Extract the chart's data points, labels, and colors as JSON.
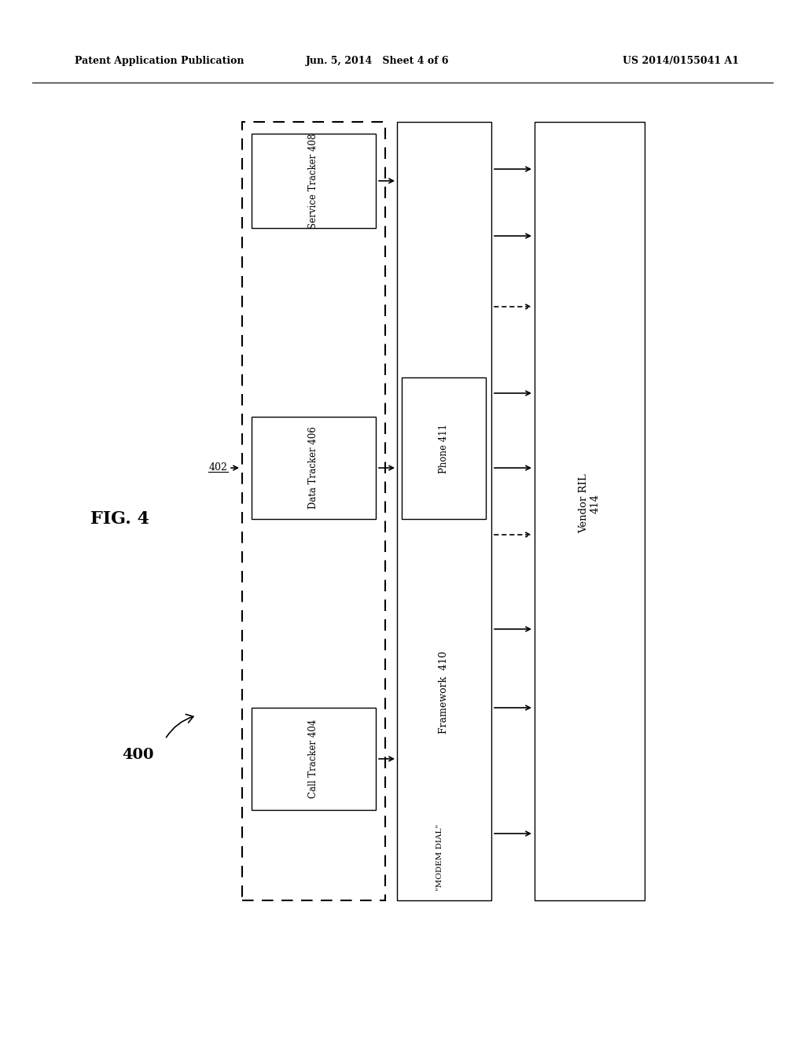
{
  "bg_color": "#ffffff",
  "header_left": "Patent Application Publication",
  "header_mid": "Jun. 5, 2014   Sheet 4 of 6",
  "header_right": "US 2014/0155041 A1",
  "fig_label": "FIG. 4",
  "label_400": "400",
  "label_402": "402"
}
